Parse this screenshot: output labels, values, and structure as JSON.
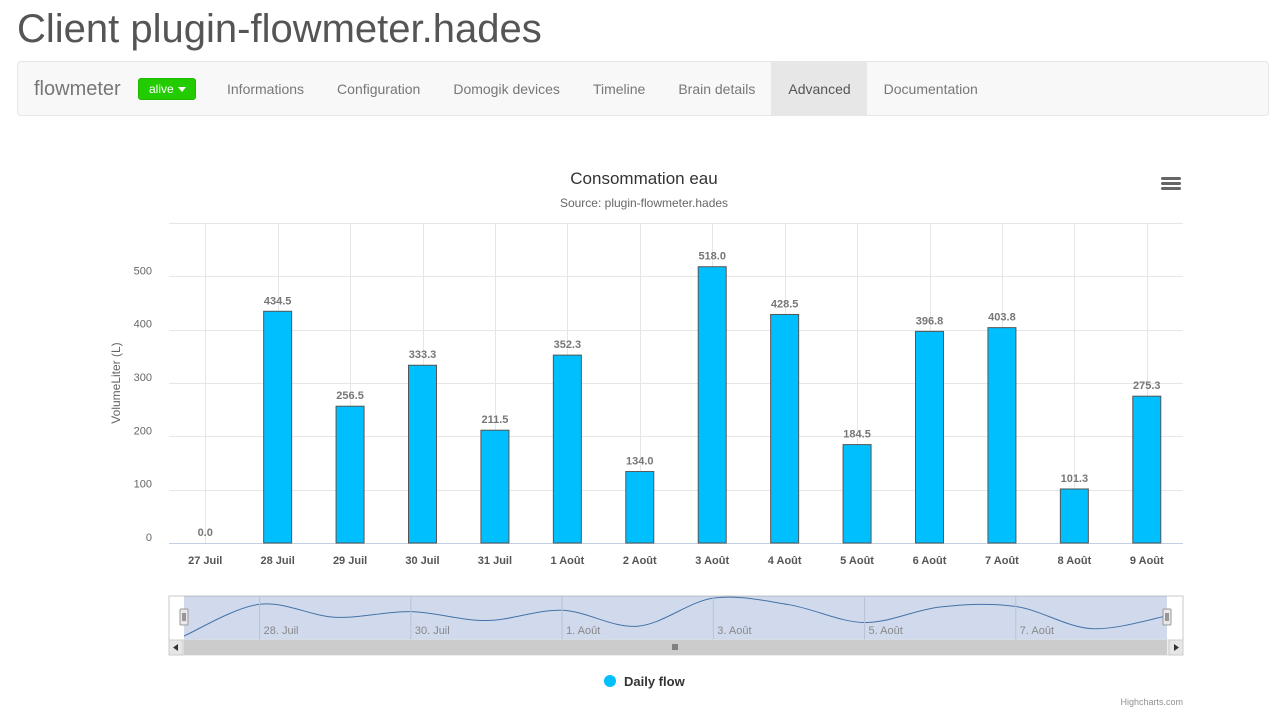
{
  "page": {
    "title": "Client plugin-flowmeter.hades"
  },
  "navbar": {
    "brand": "flowmeter",
    "status": {
      "label": "alive",
      "color": "#22cc00"
    },
    "tabs": [
      {
        "label": "Informations",
        "active": false
      },
      {
        "label": "Configuration",
        "active": false
      },
      {
        "label": "Domogik devices",
        "active": false
      },
      {
        "label": "Timeline",
        "active": false
      },
      {
        "label": "Brain details",
        "active": false
      },
      {
        "label": "Advanced",
        "active": true
      },
      {
        "label": "Documentation",
        "active": false
      }
    ]
  },
  "chart_menu_icon": "hamburger-menu-icon",
  "chart_data": {
    "type": "bar",
    "title": "Consommation eau",
    "subtitle": "Source: plugin-flowmeter.hades",
    "xlabel": "",
    "ylabel": "VolumeLiter (L)",
    "ylim": [
      0,
      600
    ],
    "yticks": [
      0,
      100,
      200,
      300,
      400,
      500
    ],
    "grid": true,
    "categories": [
      "27 Juil",
      "28 Juil",
      "29 Juil",
      "30 Juil",
      "31 Juil",
      "1 Août",
      "2 Août",
      "3 Août",
      "4 Août",
      "5 Août",
      "6 Août",
      "7 Août",
      "8 Août",
      "9 Août"
    ],
    "series": [
      {
        "name": "Daily flow",
        "color": "#00bfff",
        "values": [
          0.0,
          434.5,
          256.5,
          333.3,
          211.5,
          352.3,
          134.0,
          518.0,
          428.5,
          184.5,
          396.8,
          403.8,
          101.3,
          275.3
        ]
      }
    ],
    "data_labels": [
      "0.0",
      "434.5",
      "256.5",
      "333.3",
      "211.5",
      "352.3",
      "134.0",
      "518.0",
      "428.5",
      "184.5",
      "396.8",
      "403.8",
      "101.3",
      "275.3"
    ],
    "legend_position": "bottom-center",
    "navigator": {
      "labels": [
        "28. Juil",
        "30. Juil",
        "1. Août",
        "3. Août",
        "5. Août",
        "7. Août"
      ]
    },
    "credits": "Highcharts.com"
  }
}
